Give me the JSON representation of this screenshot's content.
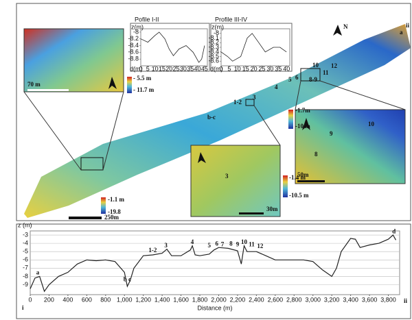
{
  "map": {
    "labels": [
      "N",
      "ii",
      "a",
      "10",
      "12",
      "11",
      "8-9",
      "4",
      "5",
      "6",
      "1-2",
      "3",
      "b-c",
      "9",
      "8",
      "10",
      "3"
    ],
    "scale_labels": [
      "- 5.5 m",
      "- 11.7 m",
      "-1.7m",
      "-10 m",
      "-1.4 m",
      "-10.5 m",
      "-1.1 m",
      "-19.8",
      "250m",
      "70 m",
      "50m",
      "30m"
    ]
  },
  "chart_data": [
    {
      "type": "line",
      "title": "Pofile I-II",
      "y_label": "z(m)",
      "x_label": "d(m)",
      "x": [
        0,
        5,
        10,
        13,
        17,
        20,
        23,
        27,
        32,
        37,
        41,
        43,
        45
      ],
      "series": [
        {
          "color": "#222",
          "values": [
            -8.2,
            -8.3,
            -8.1,
            -8.0,
            -8.2,
            -8.5,
            -8.7,
            -8.5,
            -8.4,
            -8.6,
            -8.9,
            -8.8,
            -8.4
          ]
        }
      ],
      "xlim": [
        0,
        47
      ],
      "xticks": [
        0,
        5,
        10,
        15,
        20,
        25,
        30,
        35,
        40,
        45
      ],
      "ylim": [
        -9,
        -7.9
      ],
      "yticks": [
        -8,
        -8.2,
        -8.4,
        -8.6,
        -8.8
      ]
    },
    {
      "type": "line",
      "title": "Profile III-IV",
      "y_label": "z(m)",
      "x_label": "d(m)",
      "x": [
        0,
        4,
        7,
        12,
        16,
        19,
        23,
        27,
        32,
        36,
        40
      ],
      "series": [
        {
          "color": "#222",
          "values": [
            -8.4,
            -8.5,
            -8.6,
            -8.5,
            -8.1,
            -8.0,
            -8.2,
            -8.4,
            -8.3,
            -8.3,
            -8.4
          ]
        }
      ],
      "xlim": [
        0,
        42
      ],
      "xticks": [
        0,
        5,
        10,
        15,
        20,
        25,
        30,
        35,
        40
      ],
      "ylim": [
        -8.7,
        -7.9
      ],
      "yticks": [
        -8,
        -8.1,
        -8.2,
        -8.3,
        -8.4,
        -8.5,
        -8.6
      ]
    },
    {
      "type": "line",
      "y_label": "z (m)",
      "x_label": "Distance (m)",
      "start_label": "i",
      "end_label": "ii",
      "x": [
        0,
        50,
        100,
        150,
        200,
        300,
        400,
        500,
        600,
        700,
        800,
        900,
        1000,
        1030,
        1060,
        1100,
        1200,
        1300,
        1400,
        1450,
        1500,
        1600,
        1700,
        1720,
        1750,
        1800,
        1900,
        1950,
        2000,
        2100,
        2200,
        2240,
        2270,
        2300,
        2400,
        2500,
        2600,
        2700,
        2800,
        2900,
        3000,
        3100,
        3200,
        3250,
        3300,
        3400,
        3450,
        3500,
        3600,
        3700,
        3800,
        3850,
        3880
      ],
      "series": [
        {
          "color": "#222",
          "values": [
            -9.5,
            -8.2,
            -8,
            -9.8,
            -9,
            -8,
            -7.5,
            -6.5,
            -6,
            -6.1,
            -6,
            -6.2,
            -7.5,
            -9.2,
            -8.5,
            -7,
            -5.5,
            -5.4,
            -5.2,
            -4.7,
            -5.5,
            -5.5,
            -4.8,
            -4.3,
            -5.4,
            -5.5,
            -5.3,
            -4.8,
            -4.5,
            -4.6,
            -4.9,
            -6.5,
            -4.3,
            -5,
            -5,
            -5.5,
            -6,
            -6,
            -6,
            -6,
            -6.2,
            -7.2,
            -8,
            -7,
            -5,
            -3.4,
            -3.5,
            -4.5,
            -4.2,
            -4,
            -3.5,
            -3,
            -3.6
          ]
        }
      ],
      "annotations": [
        {
          "text": "a",
          "x": 80,
          "y": -7.6
        },
        {
          "text": "b c",
          "x": 1030,
          "y": -8.4
        },
        {
          "text": "1-2",
          "x": 1300,
          "y": -4.9
        },
        {
          "text": "3",
          "x": 1440,
          "y": -4.3
        },
        {
          "text": "4",
          "x": 1720,
          "y": -3.9
        },
        {
          "text": "5",
          "x": 1900,
          "y": -4.3
        },
        {
          "text": "6",
          "x": 1980,
          "y": -4.1
        },
        {
          "text": "7",
          "x": 2040,
          "y": -4.2
        },
        {
          "text": "8",
          "x": 2130,
          "y": -4.1
        },
        {
          "text": "9",
          "x": 2200,
          "y": -4.2
        },
        {
          "text": "10",
          "x": 2270,
          "y": -3.9
        },
        {
          "text": "11",
          "x": 2350,
          "y": -4.2
        },
        {
          "text": "12",
          "x": 2440,
          "y": -4.4
        },
        {
          "text": "d",
          "x": 3860,
          "y": -2.6
        }
      ],
      "xlim": [
        0,
        3920
      ],
      "xticks": [
        0,
        200,
        400,
        600,
        800,
        {
          "value": 1000,
          "label": "1,000"
        },
        {
          "value": 1200,
          "label": "1,200"
        },
        {
          "value": 1400,
          "label": "1,400"
        },
        {
          "value": 1600,
          "label": "1,600"
        },
        {
          "value": 1800,
          "label": "1,800"
        },
        {
          "value": 2000,
          "label": "2,000"
        },
        {
          "value": 2200,
          "label": "2,200"
        },
        {
          "value": 2400,
          "label": "2,400"
        },
        {
          "value": 2600,
          "label": "2,600"
        },
        {
          "value": 2800,
          "label": "2,800"
        },
        {
          "value": 3000,
          "label": "3,000"
        },
        {
          "value": 3200,
          "label": "3,200"
        },
        {
          "value": 3400,
          "label": "3,400"
        },
        {
          "value": 3600,
          "label": "3,600"
        },
        {
          "value": 3800,
          "label": "3,800"
        }
      ],
      "ylim": [
        -10.2,
        -2.5
      ],
      "yticks": [
        -3,
        -4,
        -5,
        -6,
        -7,
        -8,
        -9
      ],
      "grid": true
    }
  ]
}
